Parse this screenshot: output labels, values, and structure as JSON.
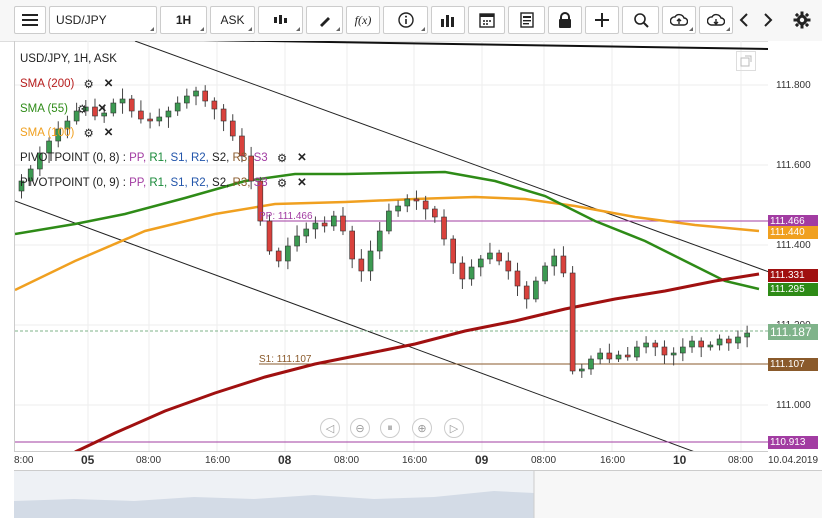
{
  "toolbar": {
    "symbol": "USD/JPY",
    "interval": "1H",
    "price_type": "ASK",
    "fx_label": "f(x)"
  },
  "chart": {
    "header": "USD/JPY, 1H, ASK",
    "indicators": [
      {
        "label": "SMA (200)",
        "color": "#b71c1c"
      },
      {
        "label": "SMA (55)",
        "color": "#2e8b17"
      },
      {
        "label": "SMA (100)",
        "color": "#f0a020"
      }
    ],
    "pivots": [
      {
        "label": "PIVOTPOINT (0, 8)",
        "color": "#222"
      },
      {
        "label": "PIVOTPOINT (0, 9)",
        "color": "#222"
      }
    ],
    "pivot_sep": ":",
    "pivot_parts": [
      {
        "label": "PP,",
        "color": "#a23ca2"
      },
      {
        "label": "R1,",
        "color": "#1a8a3a"
      },
      {
        "label": "S1,",
        "color": "#2255aa"
      },
      {
        "label": "R2,",
        "color": "#2255aa"
      },
      {
        "label": "S2,",
        "color": "#222"
      },
      {
        "label": "R3,",
        "color": "#8a5a2b"
      },
      {
        "label": "S3",
        "color": "#a23ca2"
      }
    ],
    "pp_label": "PP: 111.466",
    "s1_label": "S1: 111.107",
    "price_ticks": [
      "111.800",
      "111.600",
      "111.400",
      "111.200",
      "111.000"
    ],
    "price_tags": [
      {
        "value": "111.466",
        "color": "#a23ca2"
      },
      {
        "value": "111.440",
        "color": "#f0a020"
      },
      {
        "value": "111.331",
        "color": "#a01010"
      },
      {
        "value": "111.295",
        "color": "#2e8b17"
      },
      {
        "value": "111.187",
        "color": "#7fb38a"
      },
      {
        "value": "111.107",
        "color": "#8a5a2b"
      },
      {
        "value": "110.913",
        "color": "#a23ca2"
      }
    ],
    "time_labels": [
      "8:00",
      "05",
      "08:00",
      "16:00",
      "08",
      "08:00",
      "16:00",
      "09",
      "08:00",
      "16:00",
      "10",
      "08:00",
      "10.04.2019"
    ]
  }
}
